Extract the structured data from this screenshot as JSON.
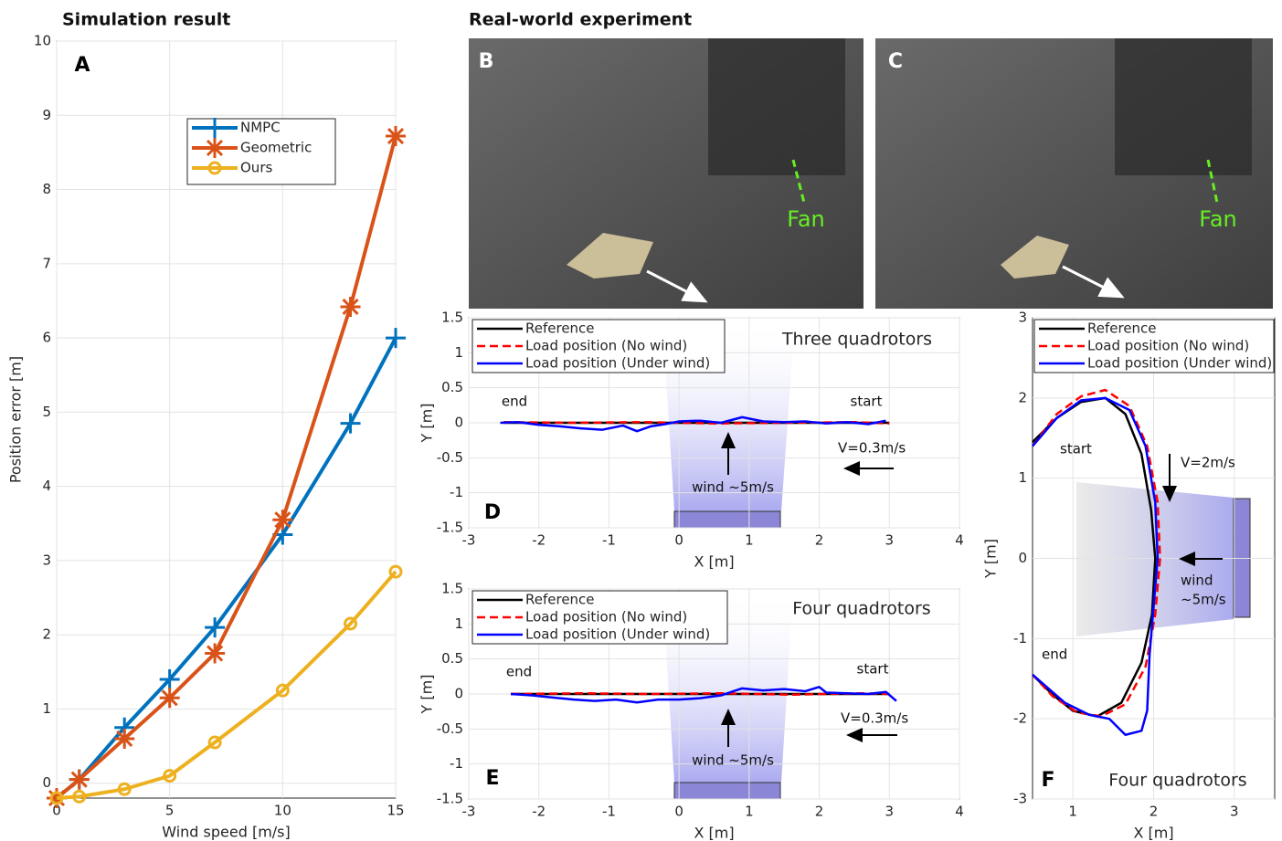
{
  "chart_data": [
    {
      "type": "line",
      "section_title": "Simulation result",
      "panel_label": "A",
      "x_label": "Wind speed [m/s]",
      "y_label": "Position error [m]",
      "xlim": [
        0,
        15
      ],
      "ylim": [
        -0.2,
        10
      ],
      "xticks": [
        0,
        5,
        10,
        15
      ],
      "yticks": [
        0,
        1,
        2,
        3,
        4,
        5,
        6,
        7,
        8,
        9,
        10
      ],
      "grid": true,
      "legend": "upper center",
      "x": [
        0,
        1,
        3,
        5,
        7,
        10,
        13,
        15
      ],
      "series": [
        {
          "name": "NMPC",
          "color": "#0072bd",
          "marker": "plus",
          "values": [
            -0.2,
            0.05,
            0.75,
            1.4,
            2.1,
            3.35,
            4.85,
            6.0
          ]
        },
        {
          "name": "Geometric",
          "color": "#d95319",
          "marker": "asterisk",
          "values": [
            -0.2,
            0.05,
            0.6,
            1.15,
            1.75,
            3.55,
            6.42,
            8.72
          ]
        },
        {
          "name": "Ours",
          "color": "#edb120",
          "marker": "circle",
          "values": [
            -0.2,
            -0.18,
            -0.08,
            0.1,
            0.55,
            1.25,
            2.15,
            2.85
          ]
        }
      ]
    },
    {
      "type": "photo",
      "section_title": "Real-world experiment",
      "panel_label": "B",
      "annotations": [
        "Fan"
      ]
    },
    {
      "type": "photo",
      "panel_label": "C",
      "annotations": [
        "Fan"
      ]
    },
    {
      "type": "line",
      "panel_label": "D",
      "title": "Three quadrotors",
      "x_label": "X [m]",
      "y_label": "Y [m]",
      "xlim": [
        -3,
        4
      ],
      "ylim": [
        -1.5,
        1.5
      ],
      "xticks": [
        -3,
        -2,
        -1,
        0,
        1,
        2,
        3,
        4
      ],
      "yticks": [
        -1.5,
        -1,
        -0.5,
        0,
        0.5,
        1,
        1.5
      ],
      "grid": true,
      "legend": "upper left",
      "annotations": [
        "end",
        "start",
        "V=0.3m/s",
        "wind ~5m/s"
      ],
      "series": [
        {
          "name": "Reference",
          "color": "#000000",
          "x": [
            -2.5,
            3
          ],
          "values": [
            0,
            0
          ]
        },
        {
          "name": "Load position (No wind)",
          "color": "#ff0000",
          "dashed": true,
          "x": [
            -2.5,
            -1.5,
            -0.5,
            0.5,
            1.5,
            2.5,
            3
          ],
          "values": [
            0.01,
            0,
            0.01,
            -0.01,
            0,
            0.01,
            -0.01
          ]
        },
        {
          "name": "Load position (Under wind)",
          "color": "#0000ff",
          "x": [
            -2.55,
            -2.3,
            -2,
            -1.7,
            -1.4,
            -1.1,
            -0.8,
            -0.6,
            -0.4,
            -0.2,
            0,
            0.3,
            0.6,
            0.9,
            1.2,
            1.5,
            1.8,
            2.1,
            2.4,
            2.7,
            2.95
          ],
          "values": [
            0,
            0.01,
            -0.03,
            -0.05,
            -0.08,
            -0.1,
            -0.04,
            -0.12,
            -0.05,
            -0.02,
            0.02,
            0.03,
            0,
            0.08,
            0.02,
            0.01,
            0.02,
            -0.01,
            0.01,
            -0.02,
            0.03
          ]
        }
      ]
    },
    {
      "type": "line",
      "panel_label": "E",
      "title": "Four quadrotors",
      "x_label": "X [m]",
      "y_label": "Y [m]",
      "xlim": [
        -3,
        4
      ],
      "ylim": [
        -1.5,
        1.5
      ],
      "xticks": [
        -3,
        -2,
        -1,
        0,
        1,
        2,
        3,
        4
      ],
      "yticks": [
        -1.5,
        -1,
        -0.5,
        0,
        0.5,
        1,
        1.5
      ],
      "grid": true,
      "legend": "upper left",
      "annotations": [
        "end",
        "start",
        "V=0.3m/s",
        "wind ~5m/s"
      ],
      "series": [
        {
          "name": "Reference",
          "color": "#000000",
          "x": [
            -2.4,
            3
          ],
          "values": [
            0,
            0
          ]
        },
        {
          "name": "Load position (No wind)",
          "color": "#ff0000",
          "dashed": true,
          "x": [
            -2.4,
            -1.4,
            -0.4,
            0.6,
            1.6,
            2.6,
            3
          ],
          "values": [
            0,
            0.01,
            0,
            0.01,
            -0.01,
            0.01,
            0
          ]
        },
        {
          "name": "Load position (Under wind)",
          "color": "#0000ff",
          "x": [
            -2.4,
            -2.1,
            -1.8,
            -1.5,
            -1.2,
            -0.9,
            -0.6,
            -0.3,
            0,
            0.3,
            0.6,
            0.9,
            1.2,
            1.5,
            1.8,
            2.0,
            2.1,
            2.4,
            2.7,
            2.95,
            3.1
          ],
          "values": [
            0,
            -0.02,
            -0.05,
            -0.08,
            -0.1,
            -0.08,
            -0.12,
            -0.08,
            -0.08,
            -0.06,
            -0.02,
            0.08,
            0.05,
            0.07,
            0.04,
            0.1,
            0.02,
            0.01,
            0,
            0.03,
            -0.1
          ]
        }
      ]
    },
    {
      "type": "line",
      "panel_label": "F",
      "title": "Four quadrotors",
      "x_label": "X [m]",
      "y_label": "Y [m]",
      "xlim": [
        0.5,
        3.5
      ],
      "ylim": [
        -3,
        3
      ],
      "xticks": [
        1,
        2,
        3
      ],
      "yticks": [
        -3,
        -2,
        -1,
        0,
        1,
        2,
        3
      ],
      "grid": true,
      "legend": "upper left",
      "annotations": [
        "start",
        "end",
        "V=2m/s",
        "wind",
        "~5m/s"
      ],
      "series": [
        {
          "name": "Reference",
          "color": "#000000",
          "x": [
            0.5,
            0.8,
            1.1,
            1.4,
            1.65,
            1.85,
            1.97,
            2.02,
            1.98,
            1.85,
            1.6,
            1.3,
            1.0,
            0.75,
            0.5
          ],
          "values": [
            1.45,
            1.75,
            1.95,
            2.0,
            1.8,
            1.3,
            0.6,
            0,
            -0.7,
            -1.3,
            -1.8,
            -1.97,
            -1.9,
            -1.7,
            -1.45
          ]
        },
        {
          "name": "Load position (No wind)",
          "color": "#ff0000",
          "dashed": true,
          "x": [
            0.5,
            0.8,
            1.1,
            1.4,
            1.7,
            1.92,
            2.05,
            2.08,
            2.02,
            1.9,
            1.65,
            1.35,
            1.05,
            0.75,
            0.5
          ],
          "values": [
            1.4,
            1.8,
            2.02,
            2.1,
            1.9,
            1.4,
            0.7,
            0,
            -0.7,
            -1.35,
            -1.82,
            -1.97,
            -1.92,
            -1.72,
            -1.45
          ]
        },
        {
          "name": "Load position (Under wind)",
          "color": "#0000ff",
          "x": [
            0.5,
            0.8,
            1.1,
            1.4,
            1.7,
            1.9,
            2.02,
            2.05,
            2.0,
            1.95,
            1.92,
            1.85,
            1.65,
            1.45,
            1.2,
            0.9,
            0.5
          ],
          "values": [
            1.4,
            1.75,
            1.97,
            2.0,
            1.85,
            1.4,
            0.7,
            0,
            -0.6,
            -1.2,
            -1.9,
            -2.15,
            -2.2,
            -2.0,
            -1.95,
            -1.8,
            -1.45
          ]
        }
      ]
    }
  ]
}
